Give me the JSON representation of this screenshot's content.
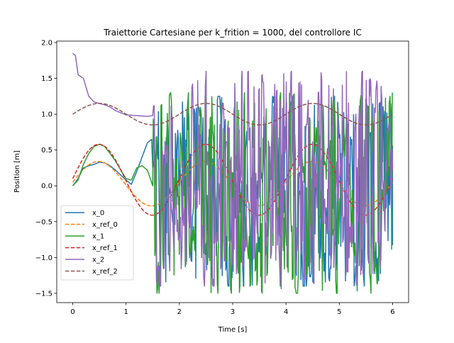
{
  "chart_data": {
    "type": "line",
    "title": "Traiettorie Cartesiane per k_frition = 1000, del controllore IC",
    "xlabel": "Time [s]",
    "ylabel": "Position [m]",
    "xlim": [
      -0.3,
      6.3
    ],
    "ylim": [
      -1.63,
      2.02
    ],
    "xticks": [
      0,
      1,
      2,
      3,
      4,
      5,
      6
    ],
    "yticks": [
      -1.5,
      -1.0,
      -0.5,
      0.0,
      0.5,
      1.0,
      1.5,
      2.0
    ],
    "xtick_labels": [
      "0",
      "1",
      "2",
      "3",
      "4",
      "5",
      "6"
    ],
    "ytick_labels": [
      "−1.5",
      "−1.0",
      "−0.5",
      "0.0",
      "0.5",
      "1.0",
      "1.5",
      "2.0"
    ],
    "grid": false,
    "legend_position": "lower-left",
    "t_end": 6.0,
    "series": [
      {
        "name": "x_0",
        "color": "#1f77b4",
        "style": "solid",
        "samples": [
          [
            0.0,
            0.0
          ],
          [
            0.1,
            0.1
          ],
          [
            0.2,
            0.25
          ],
          [
            0.3,
            0.28
          ],
          [
            0.4,
            0.3
          ],
          [
            0.5,
            0.33
          ],
          [
            0.6,
            0.32
          ],
          [
            0.7,
            0.28
          ],
          [
            0.8,
            0.22
          ],
          [
            0.9,
            0.15
          ],
          [
            1.0,
            0.08
          ],
          [
            1.1,
            0.02
          ],
          [
            1.2,
            0.2
          ],
          [
            1.3,
            0.4
          ],
          [
            1.4,
            0.6
          ],
          [
            1.48,
            0.65
          ],
          [
            1.5,
            0.25
          ]
        ],
        "noise": {
          "from": 1.5,
          "to": 6.0,
          "min": -1.4,
          "max": 1.25
        }
      },
      {
        "name": "x_ref_0",
        "color": "#ff7f0e",
        "style": "dashed",
        "samples": [
          [
            0.0,
            0.05
          ],
          [
            0.5,
            0.34
          ],
          [
            1.0,
            0.05
          ],
          [
            1.5,
            -0.28
          ],
          [
            2.0,
            0.05
          ],
          [
            2.5,
            0.34
          ],
          [
            3.0,
            0.05
          ],
          [
            3.5,
            -0.28
          ],
          [
            4.0,
            0.05
          ],
          [
            4.5,
            0.34
          ],
          [
            5.0,
            0.05
          ],
          [
            5.5,
            -0.28
          ],
          [
            6.0,
            0.05
          ]
        ]
      },
      {
        "name": "x_1",
        "color": "#2ca02c",
        "style": "solid",
        "samples": [
          [
            0.0,
            0.0
          ],
          [
            0.1,
            0.08
          ],
          [
            0.2,
            0.3
          ],
          [
            0.3,
            0.45
          ],
          [
            0.4,
            0.55
          ],
          [
            0.5,
            0.58
          ],
          [
            0.6,
            0.55
          ],
          [
            0.7,
            0.45
          ],
          [
            0.8,
            0.35
          ],
          [
            0.9,
            0.22
          ],
          [
            1.0,
            0.1
          ],
          [
            1.1,
            0.08
          ],
          [
            1.2,
            0.25
          ],
          [
            1.3,
            0.28
          ],
          [
            1.4,
            0.22
          ],
          [
            1.5,
            0.0
          ]
        ],
        "noise": {
          "from": 1.5,
          "to": 6.0,
          "min": -1.5,
          "max": 1.3
        }
      },
      {
        "name": "x_ref_1",
        "color": "#d62728",
        "style": "dashed",
        "samples": [
          [
            0.0,
            0.1
          ],
          [
            0.5,
            0.58
          ],
          [
            1.0,
            0.1
          ],
          [
            1.5,
            -0.41
          ],
          [
            2.0,
            0.1
          ],
          [
            2.5,
            0.58
          ],
          [
            3.0,
            0.1
          ],
          [
            3.5,
            -0.41
          ],
          [
            4.0,
            0.1
          ],
          [
            4.5,
            0.58
          ],
          [
            5.0,
            0.1
          ],
          [
            5.5,
            -0.41
          ],
          [
            6.0,
            0.1
          ]
        ]
      },
      {
        "name": "x_2",
        "color": "#9467bd",
        "style": "solid",
        "samples": [
          [
            0.0,
            1.85
          ],
          [
            0.05,
            1.82
          ],
          [
            0.1,
            1.55
          ],
          [
            0.2,
            1.5
          ],
          [
            0.3,
            1.25
          ],
          [
            0.4,
            1.17
          ],
          [
            0.5,
            1.15
          ],
          [
            0.6,
            1.13
          ],
          [
            0.7,
            1.1
          ],
          [
            0.8,
            1.05
          ],
          [
            0.9,
            1.02
          ],
          [
            1.0,
            0.99
          ],
          [
            1.2,
            0.98
          ],
          [
            1.4,
            0.97
          ],
          [
            1.5,
            0.98
          ]
        ],
        "noise": {
          "from": 1.5,
          "to": 6.0,
          "min": -1.4,
          "max": 1.6
        }
      },
      {
        "name": "x_ref_2",
        "color": "#8c564b",
        "style": "dashed",
        "samples": [
          [
            0.0,
            1.0
          ],
          [
            0.5,
            1.15
          ],
          [
            1.0,
            1.0
          ],
          [
            1.5,
            0.85
          ],
          [
            2.0,
            1.0
          ],
          [
            2.5,
            1.15
          ],
          [
            3.0,
            1.0
          ],
          [
            3.5,
            0.85
          ],
          [
            4.0,
            1.0
          ],
          [
            4.5,
            1.15
          ],
          [
            5.0,
            1.0
          ],
          [
            5.5,
            0.85
          ],
          [
            6.0,
            1.0
          ]
        ]
      }
    ]
  }
}
